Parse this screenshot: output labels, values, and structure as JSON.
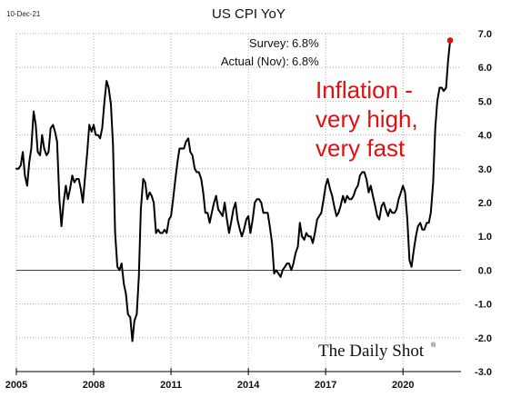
{
  "header": {
    "date": "10-Dec-21",
    "title": "US CPI YoY"
  },
  "info_box": {
    "survey_label": "Survey:",
    "survey_value": "6.8%",
    "actual_label": "Actual (Nov):",
    "actual_value": "6.8%"
  },
  "annotation": {
    "line1": "Inflation -",
    "line2": "very high,",
    "line3": "very fast",
    "color": "#e01010"
  },
  "brand": {
    "name": "The Daily Shot",
    "mark": "®"
  },
  "colors": {
    "series": "#000000",
    "highlight_point": "#e01010",
    "annotation": "#e01010"
  },
  "chart_data": {
    "type": "line",
    "title": "US CPI YoY",
    "xlabel": "",
    "ylabel": "",
    "xlim": [
      2005.0,
      2022.25
    ],
    "ylim": [
      -3.0,
      7.0
    ],
    "grid": true,
    "x_ticks": [
      "2005",
      "2008",
      "2011",
      "2014",
      "2017",
      "2020"
    ],
    "x_tick_values": [
      2005,
      2008,
      2011,
      2014,
      2017,
      2020
    ],
    "y_ticks": [
      "7.0",
      "6.0",
      "5.0",
      "4.0",
      "3.0",
      "2.0",
      "1.0",
      "0.0",
      "-1.0",
      "-2.0",
      "-3.0"
    ],
    "y_tick_values": [
      7,
      6,
      5,
      4,
      3,
      2,
      1,
      0,
      -1,
      -2,
      -3
    ],
    "reference_line": 0,
    "highlight_last_point": true,
    "series": [
      {
        "points": [
          [
            2005.0,
            3.0
          ],
          [
            2005.08,
            3.0
          ],
          [
            2005.17,
            3.1
          ],
          [
            2005.25,
            3.5
          ],
          [
            2005.33,
            2.8
          ],
          [
            2005.42,
            2.5
          ],
          [
            2005.5,
            3.2
          ],
          [
            2005.58,
            3.6
          ],
          [
            2005.67,
            4.7
          ],
          [
            2005.75,
            4.3
          ],
          [
            2005.83,
            3.5
          ],
          [
            2005.92,
            3.4
          ],
          [
            2006.0,
            4.0
          ],
          [
            2006.08,
            3.6
          ],
          [
            2006.17,
            3.4
          ],
          [
            2006.25,
            3.5
          ],
          [
            2006.33,
            4.2
          ],
          [
            2006.42,
            4.3
          ],
          [
            2006.5,
            4.1
          ],
          [
            2006.58,
            3.8
          ],
          [
            2006.67,
            2.1
          ],
          [
            2006.75,
            1.3
          ],
          [
            2006.83,
            2.0
          ],
          [
            2006.92,
            2.5
          ],
          [
            2007.0,
            2.1
          ],
          [
            2007.08,
            2.4
          ],
          [
            2007.17,
            2.8
          ],
          [
            2007.25,
            2.6
          ],
          [
            2007.33,
            2.7
          ],
          [
            2007.42,
            2.7
          ],
          [
            2007.5,
            2.4
          ],
          [
            2007.58,
            2.0
          ],
          [
            2007.67,
            2.8
          ],
          [
            2007.75,
            3.5
          ],
          [
            2007.83,
            4.3
          ],
          [
            2007.92,
            4.1
          ],
          [
            2008.0,
            4.3
          ],
          [
            2008.08,
            4.0
          ],
          [
            2008.17,
            4.0
          ],
          [
            2008.25,
            3.9
          ],
          [
            2008.33,
            4.2
          ],
          [
            2008.42,
            5.0
          ],
          [
            2008.5,
            5.6
          ],
          [
            2008.58,
            5.4
          ],
          [
            2008.67,
            4.9
          ],
          [
            2008.75,
            3.7
          ],
          [
            2008.83,
            1.1
          ],
          [
            2008.92,
            0.1
          ],
          [
            2009.0,
            0.0
          ],
          [
            2009.08,
            0.2
          ],
          [
            2009.17,
            -0.4
          ],
          [
            2009.25,
            -0.7
          ],
          [
            2009.33,
            -1.3
          ],
          [
            2009.42,
            -1.4
          ],
          [
            2009.5,
            -2.1
          ],
          [
            2009.58,
            -1.5
          ],
          [
            2009.67,
            -1.3
          ],
          [
            2009.75,
            -0.2
          ],
          [
            2009.83,
            1.8
          ],
          [
            2009.92,
            2.7
          ],
          [
            2010.0,
            2.6
          ],
          [
            2010.08,
            2.1
          ],
          [
            2010.17,
            2.3
          ],
          [
            2010.25,
            2.2
          ],
          [
            2010.33,
            2.0
          ],
          [
            2010.42,
            1.1
          ],
          [
            2010.5,
            1.2
          ],
          [
            2010.58,
            1.1
          ],
          [
            2010.67,
            1.1
          ],
          [
            2010.75,
            1.2
          ],
          [
            2010.83,
            1.1
          ],
          [
            2010.92,
            1.5
          ],
          [
            2011.0,
            1.6
          ],
          [
            2011.08,
            2.1
          ],
          [
            2011.17,
            2.7
          ],
          [
            2011.25,
            3.2
          ],
          [
            2011.33,
            3.6
          ],
          [
            2011.42,
            3.6
          ],
          [
            2011.5,
            3.6
          ],
          [
            2011.58,
            3.8
          ],
          [
            2011.67,
            3.9
          ],
          [
            2011.75,
            3.5
          ],
          [
            2011.83,
            3.4
          ],
          [
            2011.92,
            3.0
          ],
          [
            2012.0,
            2.9
          ],
          [
            2012.08,
            2.9
          ],
          [
            2012.17,
            2.7
          ],
          [
            2012.25,
            2.3
          ],
          [
            2012.33,
            1.7
          ],
          [
            2012.42,
            1.7
          ],
          [
            2012.5,
            1.4
          ],
          [
            2012.58,
            1.7
          ],
          [
            2012.67,
            2.0
          ],
          [
            2012.75,
            2.2
          ],
          [
            2012.83,
            1.8
          ],
          [
            2012.92,
            1.7
          ],
          [
            2013.0,
            1.6
          ],
          [
            2013.08,
            2.0
          ],
          [
            2013.17,
            1.5
          ],
          [
            2013.25,
            1.1
          ],
          [
            2013.33,
            1.4
          ],
          [
            2013.42,
            1.8
          ],
          [
            2013.5,
            2.0
          ],
          [
            2013.58,
            1.5
          ],
          [
            2013.67,
            1.2
          ],
          [
            2013.75,
            1.0
          ],
          [
            2013.83,
            1.2
          ],
          [
            2013.92,
            1.5
          ],
          [
            2014.0,
            1.6
          ],
          [
            2014.08,
            1.1
          ],
          [
            2014.17,
            1.5
          ],
          [
            2014.25,
            2.0
          ],
          [
            2014.33,
            2.1
          ],
          [
            2014.42,
            2.1
          ],
          [
            2014.5,
            2.0
          ],
          [
            2014.58,
            1.7
          ],
          [
            2014.67,
            1.7
          ],
          [
            2014.75,
            1.7
          ],
          [
            2014.83,
            1.3
          ],
          [
            2014.92,
            0.8
          ],
          [
            2015.0,
            -0.1
          ],
          [
            2015.08,
            0.0
          ],
          [
            2015.17,
            -0.1
          ],
          [
            2015.25,
            -0.2
          ],
          [
            2015.33,
            0.0
          ],
          [
            2015.42,
            0.1
          ],
          [
            2015.5,
            0.2
          ],
          [
            2015.58,
            0.2
          ],
          [
            2015.67,
            0.0
          ],
          [
            2015.75,
            0.2
          ],
          [
            2015.83,
            0.5
          ],
          [
            2015.92,
            0.7
          ],
          [
            2016.0,
            1.4
          ],
          [
            2016.08,
            1.0
          ],
          [
            2016.17,
            0.9
          ],
          [
            2016.25,
            1.1
          ],
          [
            2016.33,
            1.0
          ],
          [
            2016.42,
            1.0
          ],
          [
            2016.5,
            0.8
          ],
          [
            2016.58,
            1.1
          ],
          [
            2016.67,
            1.5
          ],
          [
            2016.75,
            1.6
          ],
          [
            2016.83,
            1.7
          ],
          [
            2016.92,
            2.1
          ],
          [
            2017.0,
            2.5
          ],
          [
            2017.08,
            2.7
          ],
          [
            2017.17,
            2.4
          ],
          [
            2017.25,
            2.2
          ],
          [
            2017.33,
            1.9
          ],
          [
            2017.42,
            1.6
          ],
          [
            2017.5,
            1.7
          ],
          [
            2017.58,
            1.9
          ],
          [
            2017.67,
            2.2
          ],
          [
            2017.75,
            2.0
          ],
          [
            2017.83,
            2.2
          ],
          [
            2017.92,
            2.1
          ],
          [
            2018.0,
            2.1
          ],
          [
            2018.08,
            2.2
          ],
          [
            2018.17,
            2.4
          ],
          [
            2018.25,
            2.5
          ],
          [
            2018.33,
            2.8
          ],
          [
            2018.42,
            2.9
          ],
          [
            2018.5,
            2.9
          ],
          [
            2018.58,
            2.7
          ],
          [
            2018.67,
            2.3
          ],
          [
            2018.75,
            2.5
          ],
          [
            2018.83,
            2.2
          ],
          [
            2018.92,
            1.9
          ],
          [
            2019.0,
            1.6
          ],
          [
            2019.08,
            1.5
          ],
          [
            2019.17,
            1.9
          ],
          [
            2019.25,
            2.0
          ],
          [
            2019.33,
            1.8
          ],
          [
            2019.42,
            1.6
          ],
          [
            2019.5,
            1.8
          ],
          [
            2019.58,
            1.7
          ],
          [
            2019.67,
            1.7
          ],
          [
            2019.75,
            1.8
          ],
          [
            2019.83,
            2.1
          ],
          [
            2019.92,
            2.3
          ],
          [
            2020.0,
            2.5
          ],
          [
            2020.08,
            2.3
          ],
          [
            2020.17,
            1.5
          ],
          [
            2020.25,
            0.3
          ],
          [
            2020.33,
            0.1
          ],
          [
            2020.42,
            0.6
          ],
          [
            2020.5,
            1.0
          ],
          [
            2020.58,
            1.3
          ],
          [
            2020.67,
            1.4
          ],
          [
            2020.75,
            1.2
          ],
          [
            2020.83,
            1.2
          ],
          [
            2020.92,
            1.4
          ],
          [
            2021.0,
            1.4
          ],
          [
            2021.08,
            1.7
          ],
          [
            2021.17,
            2.6
          ],
          [
            2021.25,
            4.2
          ],
          [
            2021.33,
            5.0
          ],
          [
            2021.42,
            5.4
          ],
          [
            2021.5,
            5.4
          ],
          [
            2021.58,
            5.3
          ],
          [
            2021.67,
            5.4
          ],
          [
            2021.75,
            6.2
          ],
          [
            2021.83,
            6.8
          ]
        ]
      }
    ]
  }
}
